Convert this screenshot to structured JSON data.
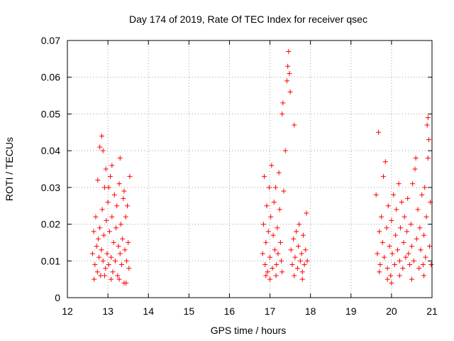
{
  "chart_data": {
    "type": "scatter",
    "title": "Day 174 of 2019, Rate Of TEC Index for receiver qsec",
    "xlabel": "GPS time / hours",
    "ylabel": "ROTI / TECUs",
    "xlim": [
      12,
      21
    ],
    "ylim": [
      0,
      0.07
    ],
    "x_ticks": [
      "12",
      "13",
      "14",
      "15",
      "16",
      "17",
      "18",
      "19",
      "20",
      "21"
    ],
    "y_ticks": [
      "0",
      "0.01",
      "0.02",
      "0.03",
      "0.04",
      "0.05",
      "0.06",
      "0.07"
    ],
    "grid": true,
    "marker": "+",
    "series": [
      {
        "name": "ROTI",
        "color": "#ff0000",
        "points": [
          [
            12.62,
            0.012
          ],
          [
            12.65,
            0.018
          ],
          [
            12.68,
            0.009
          ],
          [
            12.7,
            0.022
          ],
          [
            12.72,
            0.014
          ],
          [
            12.74,
            0.007
          ],
          [
            12.76,
            0.016
          ],
          [
            12.78,
            0.011
          ],
          [
            12.8,
            0.019
          ],
          [
            12.82,
            0.006
          ],
          [
            12.84,
            0.013
          ],
          [
            12.86,
            0.024
          ],
          [
            12.88,
            0.01
          ],
          [
            12.9,
            0.017
          ],
          [
            12.92,
            0.03
          ],
          [
            12.94,
            0.008
          ],
          [
            12.96,
            0.021
          ],
          [
            12.98,
            0.012
          ],
          [
            13.0,
            0.026
          ],
          [
            13.02,
            0.009
          ],
          [
            13.04,
            0.018
          ],
          [
            13.06,
            0.033
          ],
          [
            13.08,
            0.011
          ],
          [
            13.1,
            0.022
          ],
          [
            13.12,
            0.007
          ],
          [
            13.14,
            0.015
          ],
          [
            13.16,
            0.028
          ],
          [
            13.18,
            0.01
          ],
          [
            13.2,
            0.019
          ],
          [
            13.22,
            0.025
          ],
          [
            13.24,
            0.006
          ],
          [
            13.26,
            0.014
          ],
          [
            13.28,
            0.031
          ],
          [
            13.3,
            0.012
          ],
          [
            13.32,
            0.02
          ],
          [
            13.34,
            0.009
          ],
          [
            13.36,
            0.016
          ],
          [
            13.38,
            0.027
          ],
          [
            13.4,
            0.004
          ],
          [
            13.42,
            0.013
          ],
          [
            13.44,
            0.022
          ],
          [
            13.46,
            0.01
          ],
          [
            13.48,
            0.025
          ],
          [
            13.5,
            0.015
          ],
          [
            13.52,
            0.008
          ],
          [
            13.54,
            0.033
          ],
          [
            12.75,
            0.032
          ],
          [
            12.8,
            0.041
          ],
          [
            12.85,
            0.044
          ],
          [
            12.88,
            0.04
          ],
          [
            12.95,
            0.035
          ],
          [
            13.02,
            0.03
          ],
          [
            13.1,
            0.036
          ],
          [
            13.3,
            0.038
          ],
          [
            13.4,
            0.029
          ],
          [
            12.66,
            0.005
          ],
          [
            12.92,
            0.006
          ],
          [
            13.08,
            0.005
          ],
          [
            13.28,
            0.005
          ],
          [
            13.45,
            0.004
          ],
          [
            16.82,
            0.012
          ],
          [
            16.84,
            0.02
          ],
          [
            16.86,
            0.033
          ],
          [
            16.88,
            0.009
          ],
          [
            16.9,
            0.015
          ],
          [
            16.92,
            0.025
          ],
          [
            16.94,
            0.007
          ],
          [
            16.96,
            0.018
          ],
          [
            16.98,
            0.03
          ],
          [
            17.0,
            0.011
          ],
          [
            17.02,
            0.022
          ],
          [
            17.04,
            0.036
          ],
          [
            17.06,
            0.008
          ],
          [
            17.08,
            0.017
          ],
          [
            17.1,
            0.026
          ],
          [
            17.12,
            0.013
          ],
          [
            17.14,
            0.03
          ],
          [
            17.16,
            0.009
          ],
          [
            17.18,
            0.019
          ],
          [
            17.2,
            0.012
          ],
          [
            17.22,
            0.034
          ],
          [
            17.24,
            0.024
          ],
          [
            17.26,
            0.015
          ],
          [
            17.28,
            0.01
          ],
          [
            17.3,
            0.05
          ],
          [
            17.32,
            0.053
          ],
          [
            17.34,
            0.029
          ],
          [
            17.38,
            0.04
          ],
          [
            17.42,
            0.059
          ],
          [
            17.44,
            0.063
          ],
          [
            17.46,
            0.067
          ],
          [
            17.48,
            0.061
          ],
          [
            17.5,
            0.056
          ],
          [
            17.52,
            0.013
          ],
          [
            17.55,
            0.009
          ],
          [
            17.58,
            0.016
          ],
          [
            17.6,
            0.047
          ],
          [
            17.62,
            0.011
          ],
          [
            17.65,
            0.018
          ],
          [
            17.68,
            0.008
          ],
          [
            17.7,
            0.014
          ],
          [
            17.72,
            0.02
          ],
          [
            17.75,
            0.01
          ],
          [
            17.78,
            0.012
          ],
          [
            17.8,
            0.007
          ],
          [
            17.82,
            0.017
          ],
          [
            17.85,
            0.009
          ],
          [
            17.88,
            0.013
          ],
          [
            17.9,
            0.023
          ],
          [
            17.92,
            0.01
          ],
          [
            16.9,
            0.006
          ],
          [
            17.0,
            0.005
          ],
          [
            17.15,
            0.006
          ],
          [
            17.3,
            0.007
          ],
          [
            17.6,
            0.006
          ],
          [
            17.8,
            0.005
          ],
          [
            19.62,
            0.028
          ],
          [
            19.65,
            0.012
          ],
          [
            19.68,
            0.045
          ],
          [
            19.7,
            0.018
          ],
          [
            19.72,
            0.009
          ],
          [
            19.75,
            0.022
          ],
          [
            19.78,
            0.015
          ],
          [
            19.8,
            0.033
          ],
          [
            19.82,
            0.011
          ],
          [
            19.85,
            0.037
          ],
          [
            19.88,
            0.019
          ],
          [
            19.9,
            0.008
          ],
          [
            19.92,
            0.025
          ],
          [
            19.95,
            0.014
          ],
          [
            19.98,
            0.006
          ],
          [
            20.0,
            0.021
          ],
          [
            20.02,
            0.012
          ],
          [
            20.05,
            0.028
          ],
          [
            20.08,
            0.009
          ],
          [
            20.1,
            0.017
          ],
          [
            20.12,
            0.024
          ],
          [
            20.15,
            0.013
          ],
          [
            20.18,
            0.031
          ],
          [
            20.2,
            0.01
          ],
          [
            20.22,
            0.019
          ],
          [
            20.25,
            0.026
          ],
          [
            20.28,
            0.008
          ],
          [
            20.3,
            0.015
          ],
          [
            20.32,
            0.022
          ],
          [
            20.35,
            0.011
          ],
          [
            20.38,
            0.018
          ],
          [
            20.4,
            0.027
          ],
          [
            20.42,
            0.012
          ],
          [
            20.45,
            0.009
          ],
          [
            20.48,
            0.02
          ],
          [
            20.5,
            0.014
          ],
          [
            20.52,
            0.031
          ],
          [
            20.55,
            0.01
          ],
          [
            20.58,
            0.035
          ],
          [
            20.6,
            0.038
          ],
          [
            20.62,
            0.016
          ],
          [
            20.65,
            0.024
          ],
          [
            20.68,
            0.008
          ],
          [
            20.7,
            0.019
          ],
          [
            20.72,
            0.013
          ],
          [
            20.75,
            0.028
          ],
          [
            20.78,
            0.009
          ],
          [
            20.8,
            0.017
          ],
          [
            20.82,
            0.03
          ],
          [
            20.84,
            0.011
          ],
          [
            20.86,
            0.022
          ],
          [
            20.88,
            0.047
          ],
          [
            20.9,
            0.049
          ],
          [
            20.92,
            0.043
          ],
          [
            20.94,
            0.014
          ],
          [
            20.96,
            0.026
          ],
          [
            20.98,
            0.009
          ],
          [
            19.7,
            0.007
          ],
          [
            19.9,
            0.005
          ],
          [
            20.0,
            0.004
          ],
          [
            20.2,
            0.006
          ],
          [
            20.5,
            0.005
          ],
          [
            20.8,
            0.006
          ],
          [
            20.9,
            0.038
          ]
        ]
      }
    ]
  }
}
